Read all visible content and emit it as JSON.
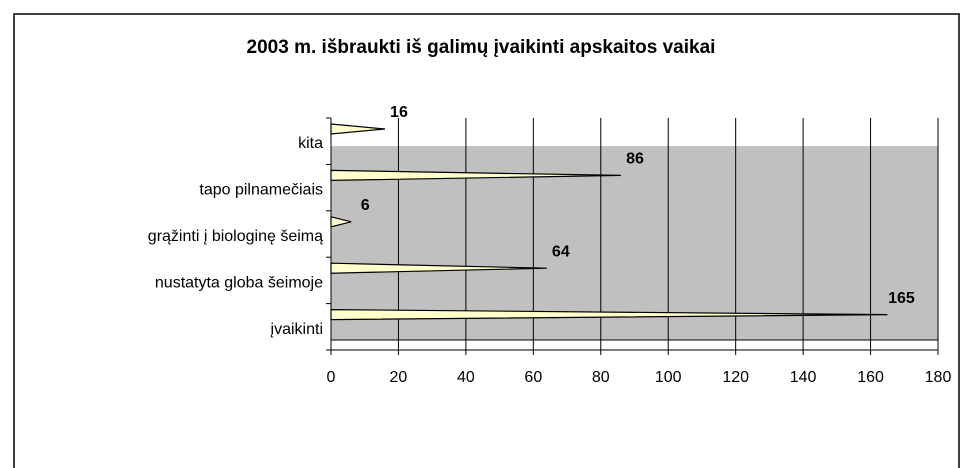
{
  "chart_data": {
    "type": "bar",
    "orientation": "horizontal",
    "title": "2003 m. išbraukti iš galimų įvaikinti apskaitos vaikai",
    "categories": [
      "kita",
      "tapo pilnamečiais",
      "grąžinti į biologinę šeimą",
      "nustatyta globa šeimoje",
      "įvaikinti"
    ],
    "values": [
      16,
      86,
      6,
      64,
      165
    ],
    "color": "#ffffcc",
    "xlim": [
      0,
      180
    ],
    "xticks": [
      0,
      20,
      40,
      60,
      80,
      100,
      120,
      140,
      160,
      180
    ],
    "grid": true
  }
}
